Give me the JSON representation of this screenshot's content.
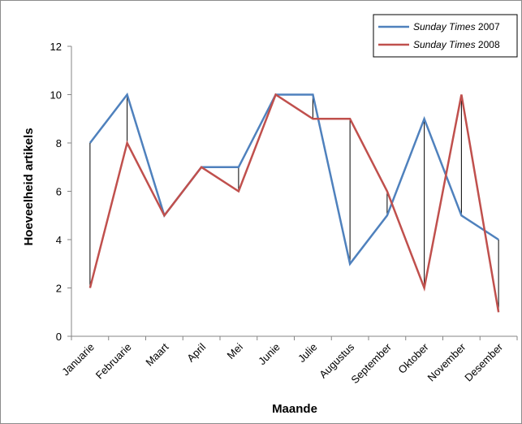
{
  "chart_data": {
    "type": "line",
    "title": "",
    "xlabel": "Maande",
    "ylabel": "Hoeveelheid artikels",
    "categories": [
      "Januarie",
      "Februarie",
      "Maart",
      "April",
      "Mei",
      "Junie",
      "Julie",
      "Augustus",
      "September",
      "Oktober",
      "November",
      "Desember"
    ],
    "ylim": [
      0,
      12
    ],
    "yticks": [
      "0",
      "2",
      "4",
      "6",
      "8",
      "10",
      "12"
    ],
    "grid": false,
    "drop_lines": true,
    "legend_position": "top-right",
    "series": [
      {
        "name_italic": "Sunday Times",
        "name_suffix": " 2007",
        "color": "#4f81bd",
        "values": [
          8,
          10,
          5,
          7,
          7,
          10,
          10,
          3,
          5,
          9,
          5,
          4
        ]
      },
      {
        "name_italic": "Sunday Times",
        "name_suffix": " 2008",
        "color": "#c0504d",
        "values": [
          2,
          8,
          5,
          7,
          6,
          10,
          9,
          9,
          6,
          2,
          10,
          1
        ]
      }
    ]
  }
}
